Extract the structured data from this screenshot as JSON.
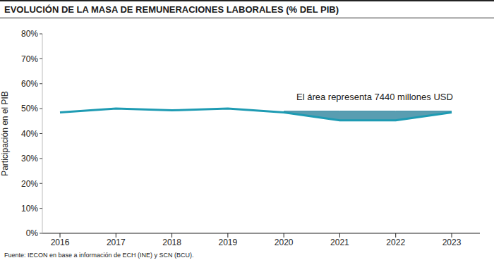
{
  "chart_data": {
    "type": "line",
    "title": "EVOLUCIÓN DE LA MASA DE REMUNERACIONES LABORALES (% DEL PIB)",
    "source": "Fuente: IECON en base a información de ECH (INE) y SCN (BCU).",
    "y_label": "Participación en el PIB",
    "categories": [
      "2016",
      "2017",
      "2018",
      "2019",
      "2020",
      "2021",
      "2022",
      "2023"
    ],
    "values": [
      48.5,
      50,
      49.3,
      50,
      48.5,
      45.3,
      45.3,
      48.5
    ],
    "color": "#1e9bb3",
    "ylim": [
      0,
      80
    ],
    "yticks": [
      {
        "value": 0,
        "label": "0%"
      },
      {
        "value": 10,
        "label": "10%"
      },
      {
        "value": 20,
        "label": "20%"
      },
      {
        "value": 30,
        "label": "30%"
      },
      {
        "value": 40,
        "label": "40%"
      },
      {
        "value": 50,
        "label": "50%"
      },
      {
        "value": 60,
        "label": "60%"
      },
      {
        "value": 70,
        "label": "70%"
      },
      {
        "value": 80,
        "label": "80%"
      }
    ],
    "grid": false,
    "shaded_area": {
      "label": "El área representa 7440 millones USD",
      "from": "2020",
      "to": "2023",
      "upper": 49,
      "color": "#3c8ca3"
    }
  }
}
